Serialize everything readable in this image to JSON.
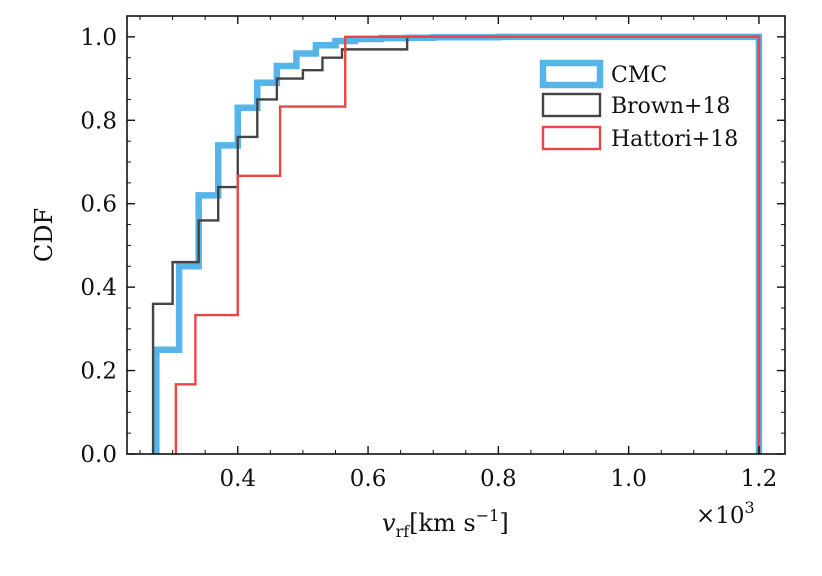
{
  "chart_data": {
    "type": "step",
    "title": "",
    "xlabel": "v_rf [km s^-1]",
    "xlabel_var": "v",
    "xlabel_sub": "rf",
    "xlabel_units": "[km s",
    "xlabel_exp": "−1",
    "xlabel_close": "]",
    "ylabel": "CDF",
    "x_multiplier": "×10",
    "x_multiplier_exp": "3",
    "xlim": [
      0.23,
      1.24
    ],
    "ylim": [
      0.0,
      1.05
    ],
    "xticks": [
      0.4,
      0.6,
      0.8,
      1.0,
      1.2
    ],
    "xtick_labels": [
      "0.4",
      "0.6",
      "0.8",
      "1.0",
      "1.2"
    ],
    "yticks": [
      0.0,
      0.2,
      0.4,
      0.6,
      0.8,
      1.0
    ],
    "ytick_labels": [
      "0.0",
      "0.2",
      "0.4",
      "0.6",
      "0.8",
      "1.0"
    ],
    "legend_position": "top-right",
    "series": [
      {
        "name": "CMC",
        "color": "#56b4e9",
        "line_style": "thick",
        "x": [
          0.275,
          0.31,
          0.34,
          0.37,
          0.4,
          0.43,
          0.46,
          0.49,
          0.52,
          0.55,
          0.58,
          0.62,
          0.66,
          0.7,
          0.8,
          1.0,
          1.2
        ],
        "y": [
          0.25,
          0.45,
          0.62,
          0.74,
          0.83,
          0.89,
          0.93,
          0.96,
          0.98,
          0.99,
          0.995,
          0.997,
          0.998,
          0.999,
          1.0,
          1.0,
          1.0
        ]
      },
      {
        "name": "Brown+18",
        "color": "#444444",
        "line_style": "medium",
        "x": [
          0.27,
          0.3,
          0.34,
          0.37,
          0.4,
          0.43,
          0.46,
          0.5,
          0.53,
          0.56,
          0.63,
          0.66,
          1.2
        ],
        "y": [
          0.36,
          0.46,
          0.56,
          0.64,
          0.76,
          0.85,
          0.9,
          0.92,
          0.95,
          0.97,
          0.97,
          1.0,
          1.0
        ]
      },
      {
        "name": "Hattori+18",
        "color": "#ee4444",
        "line_style": "medium",
        "x": [
          0.305,
          0.335,
          0.4,
          0.465,
          0.565,
          1.2
        ],
        "y": [
          0.167,
          0.333,
          0.667,
          0.833,
          1.0,
          1.0
        ]
      }
    ]
  }
}
